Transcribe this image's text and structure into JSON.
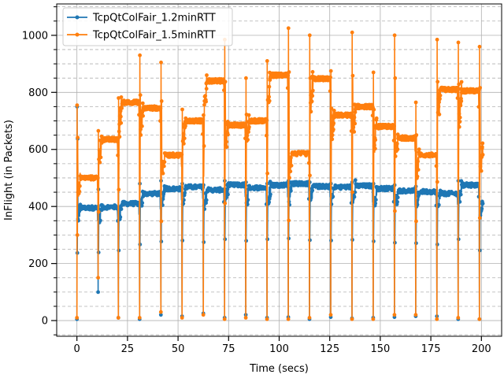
{
  "chart_data": {
    "type": "line",
    "xlabel": "Time (secs)",
    "ylabel": "InFlight (in Packets)",
    "xlim": [
      -10,
      210
    ],
    "ylim": [
      -55,
      1110
    ],
    "x_ticks": [
      0,
      25,
      50,
      75,
      100,
      125,
      150,
      175,
      200
    ],
    "y_ticks": [
      0,
      200,
      400,
      600,
      800,
      1000
    ],
    "y_minor_ticks": [
      -50,
      50,
      100,
      150,
      250,
      300,
      350,
      450,
      500,
      550,
      650,
      700,
      750,
      850,
      900,
      950,
      1050,
      1100
    ],
    "grid": true,
    "minor_grid": "dashed",
    "legend_position": "upper-left",
    "period_start_times": [
      0,
      10.5,
      20.5,
      31,
      41.5,
      52,
      62.5,
      73,
      83.5,
      94,
      104.5,
      115,
      125.5,
      136,
      146.5,
      157,
      167.5,
      178,
      188.5,
      199
    ],
    "series": [
      {
        "name": "TcpQtColFair_1.2minRTT",
        "color": "#1f77b4",
        "plateaus": [
          395,
          398,
          410,
          445,
          462,
          468,
          458,
          475,
          466,
          475,
          480,
          470,
          468,
          472,
          463,
          455,
          452,
          445,
          475,
          410
        ],
        "drop_minima": [
          5,
          100,
          10,
          5,
          20,
          15,
          25,
          10,
          20,
          10,
          12,
          5,
          12,
          8,
          10,
          12,
          15,
          15,
          5,
          5
        ],
        "peaks": [
          750,
          460,
          470,
          480,
          490,
          480,
          475,
          490,
          485,
          480,
          490,
          485,
          480,
          485,
          480,
          475,
          470,
          470,
          490,
          460
        ]
      },
      {
        "name": "TcpQtColFair_1.5minRTT",
        "color": "#ff7f0e",
        "plateaus": [
          500,
          635,
          765,
          745,
          580,
          700,
          840,
          685,
          700,
          860,
          585,
          848,
          720,
          750,
          680,
          640,
          580,
          810,
          805,
          600
        ],
        "drop_minima": [
          10,
          150,
          10,
          10,
          30,
          10,
          20,
          5,
          10,
          5,
          5,
          10,
          20,
          5,
          5,
          20,
          20,
          5,
          10,
          5
        ],
        "peaks": [
          755,
          665,
          780,
          930,
          905,
          740,
          720,
          985,
          850,
          910,
          1025,
          1000,
          875,
          1010,
          870,
          1000,
          765,
          985,
          975,
          960
        ]
      }
    ]
  }
}
